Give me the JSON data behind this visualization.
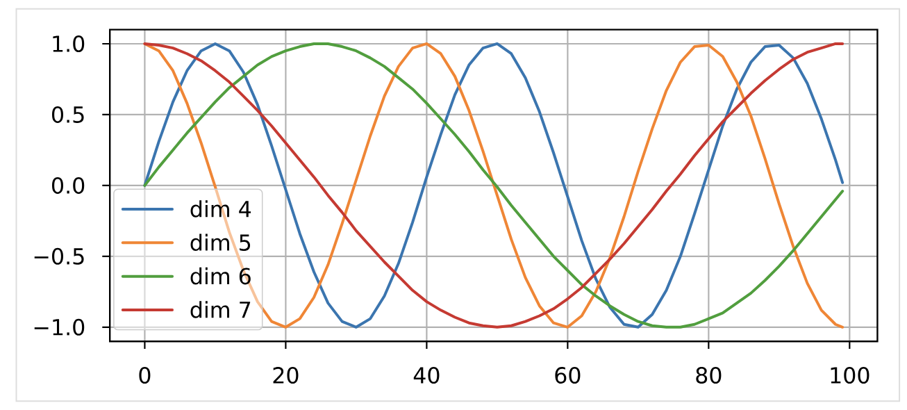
{
  "chart_data": {
    "type": "line",
    "x": [
      0,
      2,
      4,
      6,
      8,
      10,
      12,
      14,
      16,
      18,
      20,
      22,
      24,
      26,
      28,
      30,
      32,
      34,
      36,
      38,
      40,
      42,
      44,
      46,
      48,
      50,
      52,
      54,
      56,
      58,
      60,
      62,
      64,
      66,
      68,
      70,
      72,
      74,
      76,
      78,
      80,
      82,
      84,
      86,
      88,
      90,
      92,
      94,
      96,
      98,
      99
    ],
    "series": [
      {
        "name": "dim 4",
        "color": "#3b75af",
        "values": [
          0,
          0.31,
          0.59,
          0.81,
          0.95,
          1.0,
          0.95,
          0.8,
          0.57,
          0.28,
          -0.03,
          -0.34,
          -0.61,
          -0.83,
          -0.96,
          -1.0,
          -0.94,
          -0.78,
          -0.55,
          -0.26,
          0.06,
          0.36,
          0.64,
          0.85,
          0.97,
          1.0,
          0.93,
          0.76,
          0.52,
          0.23,
          -0.08,
          -0.39,
          -0.66,
          -0.86,
          -0.98,
          -1.0,
          -0.91,
          -0.74,
          -0.5,
          -0.2,
          0.11,
          0.42,
          0.68,
          0.87,
          0.98,
          0.99,
          0.9,
          0.72,
          0.47,
          0.18,
          0.02
        ]
      },
      {
        "name": "dim 5",
        "color": "#ef8636",
        "values": [
          1,
          0.95,
          0.81,
          0.58,
          0.3,
          -0.01,
          -0.33,
          -0.6,
          -0.82,
          -0.96,
          -1.0,
          -0.94,
          -0.79,
          -0.56,
          -0.27,
          0.04,
          0.35,
          0.63,
          0.84,
          0.97,
          1.0,
          0.93,
          0.77,
          0.53,
          0.24,
          -0.07,
          -0.38,
          -0.65,
          -0.85,
          -0.97,
          -1.0,
          -0.92,
          -0.75,
          -0.51,
          -0.22,
          0.1,
          0.4,
          0.67,
          0.87,
          0.98,
          0.99,
          0.91,
          0.73,
          0.49,
          0.19,
          -0.13,
          -0.43,
          -0.69,
          -0.88,
          -0.98,
          -1.0
        ]
      },
      {
        "name": "dim 6",
        "color": "#519e3e",
        "values": [
          0,
          0.13,
          0.25,
          0.37,
          0.48,
          0.59,
          0.69,
          0.77,
          0.85,
          0.91,
          0.95,
          0.98,
          1.0,
          1.0,
          0.98,
          0.95,
          0.9,
          0.84,
          0.76,
          0.68,
          0.58,
          0.47,
          0.36,
          0.24,
          0.11,
          -0.01,
          -0.14,
          -0.26,
          -0.38,
          -0.5,
          -0.6,
          -0.7,
          -0.78,
          -0.85,
          -0.91,
          -0.96,
          -0.99,
          -1.0,
          -1.0,
          -0.98,
          -0.94,
          -0.9,
          -0.83,
          -0.76,
          -0.67,
          -0.57,
          -0.46,
          -0.34,
          -0.22,
          -0.1,
          -0.04
        ]
      },
      {
        "name": "dim 7",
        "color": "#c53a32",
        "values": [
          1,
          0.99,
          0.97,
          0.93,
          0.88,
          0.81,
          0.73,
          0.63,
          0.53,
          0.42,
          0.3,
          0.18,
          0.06,
          -0.07,
          -0.19,
          -0.32,
          -0.43,
          -0.54,
          -0.64,
          -0.74,
          -0.82,
          -0.88,
          -0.93,
          -0.97,
          -0.99,
          -1.0,
          -0.99,
          -0.96,
          -0.92,
          -0.87,
          -0.8,
          -0.72,
          -0.62,
          -0.52,
          -0.41,
          -0.29,
          -0.17,
          -0.04,
          0.08,
          0.21,
          0.33,
          0.45,
          0.55,
          0.65,
          0.74,
          0.82,
          0.89,
          0.94,
          0.97,
          1.0,
          1.0
        ]
      }
    ],
    "xlim": [
      -4.95,
      103.95
    ],
    "ylim": [
      -1.1,
      1.1
    ],
    "xticks": [
      0,
      20,
      40,
      60,
      80,
      100
    ],
    "yticks": [
      {
        "value": -1,
        "label": "−1.0"
      },
      {
        "value": -0.5,
        "label": "−0.5"
      },
      {
        "value": 0,
        "label": "0.0"
      },
      {
        "value": 0.5,
        "label": "0.5"
      },
      {
        "value": 1,
        "label": "1.0"
      }
    ],
    "grid": true,
    "legend": "bottom left"
  }
}
